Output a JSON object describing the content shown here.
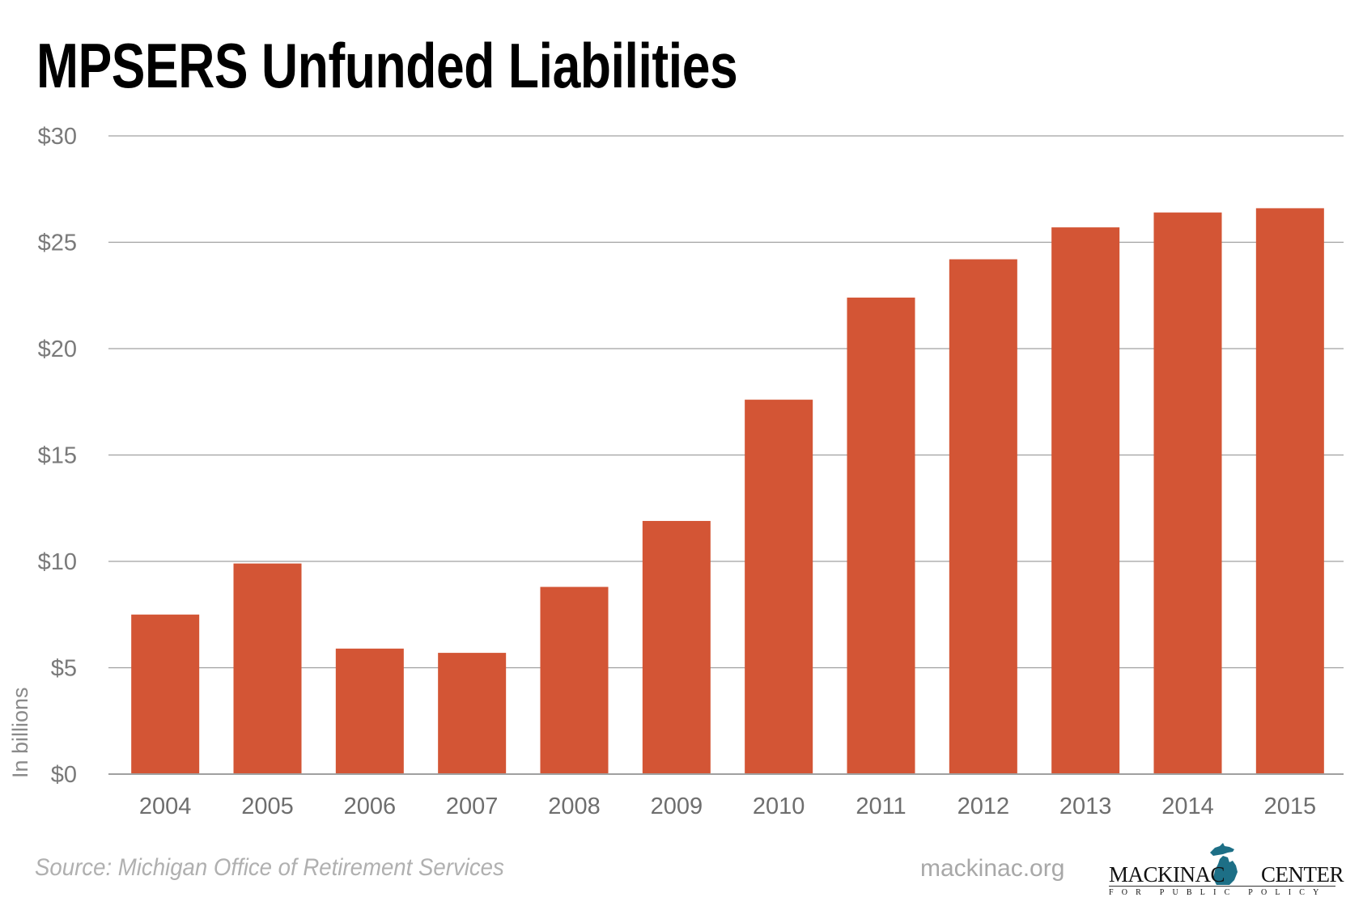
{
  "chart_data": {
    "type": "bar",
    "title": "MPSERS Unfunded Liabilities",
    "xlabel": "",
    "ylabel": "In billions",
    "categories": [
      "2004",
      "2005",
      "2006",
      "2007",
      "2008",
      "2009",
      "2010",
      "2011",
      "2012",
      "2013",
      "2014",
      "2015"
    ],
    "values": [
      7.5,
      9.9,
      5.9,
      5.7,
      8.8,
      11.9,
      17.6,
      22.4,
      24.2,
      25.7,
      26.4,
      26.6
    ],
    "ylim": [
      0,
      30
    ],
    "yticks": [
      0,
      5,
      10,
      15,
      20,
      25,
      30
    ],
    "ytick_labels": [
      "$0",
      "$5",
      "$10",
      "$15",
      "$20",
      "$25",
      "$30"
    ],
    "grid": true,
    "legend": "none",
    "bar_color": "#d35535",
    "grid_color": "#a0a0a0"
  },
  "footer": {
    "source": "Source: Michigan Office of Retirement Services",
    "website": "mackinac.org",
    "logo_left": "MACKINAC",
    "logo_right": "CENTER",
    "logo_sub": "FOR PUBLIC POLICY",
    "logo_color": "#1d6f86"
  }
}
